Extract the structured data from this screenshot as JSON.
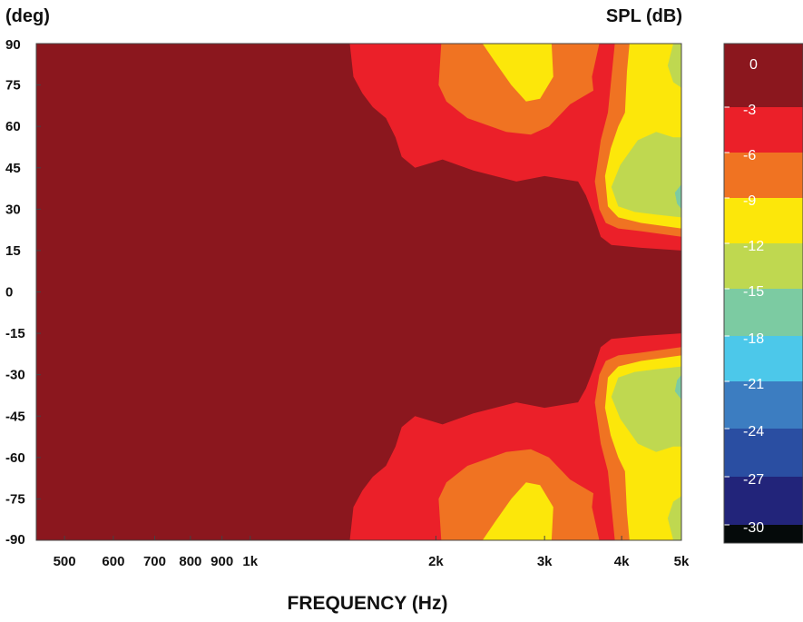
{
  "chart_data": {
    "type": "heatmap",
    "subtype": "polar-directivity-contour",
    "x_scale": "log",
    "xlabel": "FREQUENCY (Hz)",
    "ylabel": "(deg)",
    "colorbar_label": "SPL (dB)",
    "xlim": [
      450,
      5000
    ],
    "ylim": [
      -90,
      90
    ],
    "x_ticks": [
      {
        "value": 500,
        "label": "500"
      },
      {
        "value": 600,
        "label": "600"
      },
      {
        "value": 700,
        "label": "700"
      },
      {
        "value": 800,
        "label": "800"
      },
      {
        "value": 900,
        "label": "900"
      },
      {
        "value": 1000,
        "label": "1k"
      },
      {
        "value": 2000,
        "label": "2k"
      },
      {
        "value": 3000,
        "label": "3k"
      },
      {
        "value": 4000,
        "label": "4k"
      },
      {
        "value": 5000,
        "label": "5k"
      }
    ],
    "y_ticks": [
      90,
      75,
      60,
      45,
      30,
      15,
      0,
      -15,
      -30,
      -45,
      -60,
      -75,
      -90
    ],
    "y_tick_labels": [
      "90",
      "75",
      "60",
      "45",
      "30",
      "15",
      "0",
      "-15",
      "-30",
      "-45",
      "-60",
      "-75",
      "-90"
    ],
    "levels": [
      {
        "label": "0",
        "db": 0,
        "color": "#8B171E"
      },
      {
        "label": "-3",
        "db": -3,
        "color": "#EB2029"
      },
      {
        "label": "-6",
        "db": -6,
        "color": "#F07322"
      },
      {
        "label": "-9",
        "db": -9,
        "color": "#FCE70A"
      },
      {
        "label": "-12",
        "db": -12,
        "color": "#BFD850"
      },
      {
        "label": "-15",
        "db": -15,
        "color": "#7CCBA2"
      },
      {
        "label": "-18",
        "db": -18,
        "color": "#4CC8EA"
      },
      {
        "label": "-21",
        "db": -21,
        "color": "#3C7DC1"
      },
      {
        "label": "-24",
        "db": -24,
        "color": "#2A4EA2"
      },
      {
        "label": "-27",
        "db": -27,
        "color": "#22247A"
      },
      {
        "label": "-30",
        "db": -30,
        "color": "#050A0A"
      }
    ],
    "contours_upper": [
      {
        "level": "-3",
        "points": [
          [
            1450,
            90
          ],
          [
            1470,
            78
          ],
          [
            1520,
            72
          ],
          [
            1580,
            67
          ],
          [
            1660,
            63
          ],
          [
            1720,
            56
          ],
          [
            1760,
            49
          ],
          [
            1850,
            45
          ],
          [
            2050,
            48
          ],
          [
            2300,
            44
          ],
          [
            2700,
            40
          ],
          [
            3000,
            42
          ],
          [
            3400,
            40
          ],
          [
            3500,
            35
          ],
          [
            3600,
            28
          ],
          [
            3700,
            20
          ],
          [
            3850,
            17
          ],
          [
            4300,
            16
          ],
          [
            5000,
            15
          ],
          [
            5000,
            90
          ]
        ]
      },
      {
        "level": "-6",
        "points": [
          [
            2040,
            90
          ],
          [
            2020,
            75
          ],
          [
            2080,
            69
          ],
          [
            2250,
            63
          ],
          [
            2600,
            58
          ],
          [
            2850,
            57
          ],
          [
            3050,
            60
          ],
          [
            3300,
            68
          ],
          [
            3600,
            73
          ],
          [
            3580,
            78
          ],
          [
            3680,
            90
          ]
        ]
      },
      {
        "level": "-6",
        "points": [
          [
            3900,
            90
          ],
          [
            3800,
            65
          ],
          [
            3700,
            55
          ],
          [
            3620,
            40
          ],
          [
            3680,
            30
          ],
          [
            3770,
            25
          ],
          [
            3950,
            23
          ],
          [
            4300,
            22
          ],
          [
            5000,
            20
          ],
          [
            5000,
            90
          ]
        ]
      },
      {
        "level": "-9",
        "points": [
          [
            2380,
            90
          ],
          [
            2500,
            83
          ],
          [
            2650,
            75
          ],
          [
            2800,
            69
          ],
          [
            2950,
            70
          ],
          [
            3100,
            78
          ],
          [
            3080,
            90
          ]
        ]
      },
      {
        "level": "-9",
        "points": [
          [
            4120,
            90
          ],
          [
            4080,
            80
          ],
          [
            4050,
            65
          ],
          [
            3950,
            60
          ],
          [
            3840,
            52
          ],
          [
            3760,
            42
          ],
          [
            3800,
            31
          ],
          [
            3950,
            27
          ],
          [
            4300,
            25
          ],
          [
            5000,
            23
          ],
          [
            5000,
            90
          ]
        ]
      },
      {
        "level": "-12",
        "points": [
          [
            4850,
            90
          ],
          [
            4750,
            82
          ],
          [
            4850,
            76
          ],
          [
            5000,
            74
          ],
          [
            5000,
            90
          ]
        ]
      },
      {
        "level": "-12",
        "points": [
          [
            4850,
            56
          ],
          [
            4550,
            58
          ],
          [
            4250,
            55
          ],
          [
            3980,
            46
          ],
          [
            3850,
            38
          ],
          [
            3950,
            31
          ],
          [
            4200,
            29
          ],
          [
            4550,
            28
          ],
          [
            5000,
            27
          ],
          [
            5000,
            56
          ]
        ]
      },
      {
        "level": "-15",
        "points": [
          [
            5000,
            39
          ],
          [
            4880,
            36
          ],
          [
            4920,
            32
          ],
          [
            5000,
            30
          ]
        ]
      }
    ],
    "mirror_about_zero": true,
    "legend_position": "right colorbar"
  }
}
